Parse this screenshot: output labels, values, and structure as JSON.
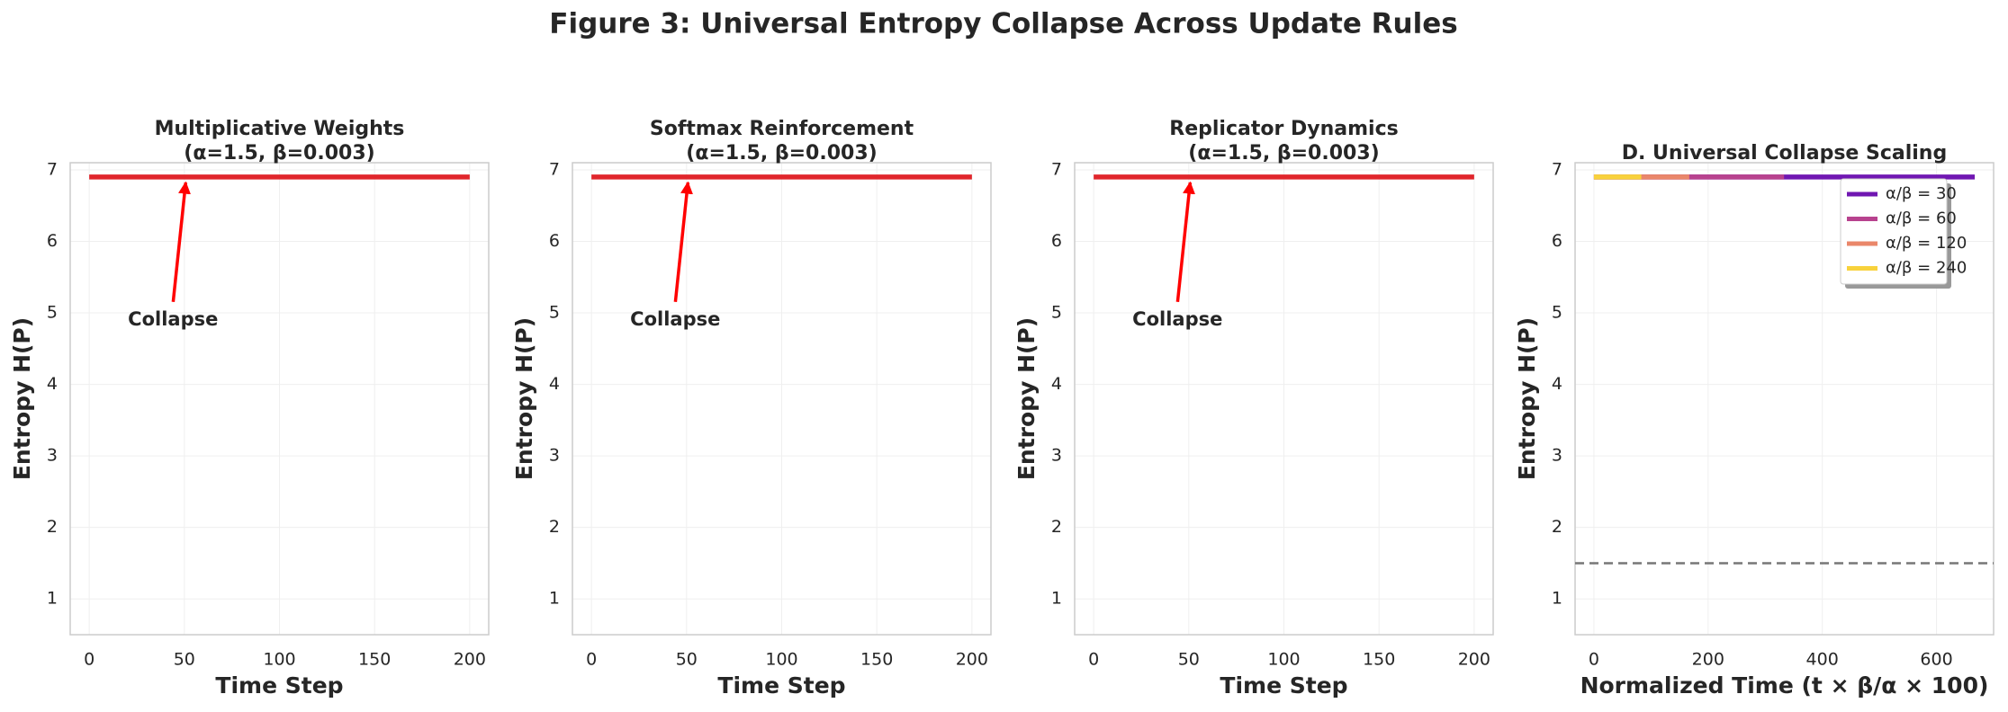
{
  "title": "Figure 3: Universal Entropy Collapse Across Update Rules",
  "chart_data": [
    {
      "type": "line",
      "title": [
        "Multiplicative Weights",
        "(α=1.5, β=0.003)"
      ],
      "xlabel": "Time Step",
      "ylabel": "Entropy H(P)",
      "xlim": [
        -10,
        210
      ],
      "ylim": [
        0.5,
        7.1
      ],
      "xticks": [
        0,
        50,
        100,
        150,
        200
      ],
      "yticks": [
        1,
        2,
        3,
        4,
        5,
        6,
        7
      ],
      "grid": true,
      "series": [
        {
          "color": "#e0262c",
          "x": [
            0,
            200
          ],
          "values": [
            6.9,
            6.9
          ]
        }
      ],
      "annotations": [
        {
          "text": "Collapse",
          "color": "#ff0000"
        }
      ]
    },
    {
      "type": "line",
      "title": [
        "Softmax Reinforcement",
        "(α=1.5, β=0.003)"
      ],
      "xlabel": "Time Step",
      "ylabel": "Entropy H(P)",
      "xlim": [
        -10,
        210
      ],
      "ylim": [
        0.5,
        7.1
      ],
      "xticks": [
        0,
        50,
        100,
        150,
        200
      ],
      "yticks": [
        1,
        2,
        3,
        4,
        5,
        6,
        7
      ],
      "grid": true,
      "series": [
        {
          "color": "#e0262c",
          "x": [
            0,
            200
          ],
          "values": [
            6.9,
            6.9
          ]
        }
      ],
      "annotations": [
        {
          "text": "Collapse",
          "color": "#ff0000"
        }
      ]
    },
    {
      "type": "line",
      "title": [
        "Replicator Dynamics",
        "(α=1.5, β=0.003)"
      ],
      "xlabel": "Time Step",
      "ylabel": "Entropy H(P)",
      "xlim": [
        -10,
        210
      ],
      "ylim": [
        0.5,
        7.1
      ],
      "xticks": [
        0,
        50,
        100,
        150,
        200
      ],
      "yticks": [
        1,
        2,
        3,
        4,
        5,
        6,
        7
      ],
      "grid": true,
      "series": [
        {
          "color": "#e0262c",
          "x": [
            0,
            200
          ],
          "values": [
            6.9,
            6.9
          ]
        }
      ],
      "annotations": [
        {
          "text": "Collapse",
          "color": "#ff0000"
        }
      ]
    },
    {
      "type": "line",
      "title": [
        "D. Universal Collapse Scaling"
      ],
      "xlabel": "Normalized Time (t × β/α × 100)",
      "ylabel": "Entropy H(P)",
      "xlim": [
        -33,
        700
      ],
      "ylim": [
        0.5,
        7.1
      ],
      "xticks": [
        0,
        200,
        400,
        600
      ],
      "yticks": [
        1,
        2,
        3,
        4,
        5,
        6,
        7
      ],
      "grid": true,
      "legend": "upper right",
      "series": [
        {
          "name": "α/β = 30",
          "color": "#7017b2",
          "x": [
            0,
            667
          ],
          "values": [
            6.9,
            6.9
          ]
        },
        {
          "name": "α/β = 60",
          "color": "#b8428e",
          "x": [
            0,
            333
          ],
          "values": [
            6.9,
            6.9
          ]
        },
        {
          "name": "α/β = 120",
          "color": "#ea876a",
          "x": [
            0,
            167
          ],
          "values": [
            6.9,
            6.9
          ]
        },
        {
          "name": "α/β = 240",
          "color": "#f8d23c",
          "x": [
            0,
            83
          ],
          "values": [
            6.9,
            6.9
          ]
        }
      ],
      "hlines": [
        {
          "y": 1.5,
          "color": "#777777"
        }
      ]
    }
  ]
}
